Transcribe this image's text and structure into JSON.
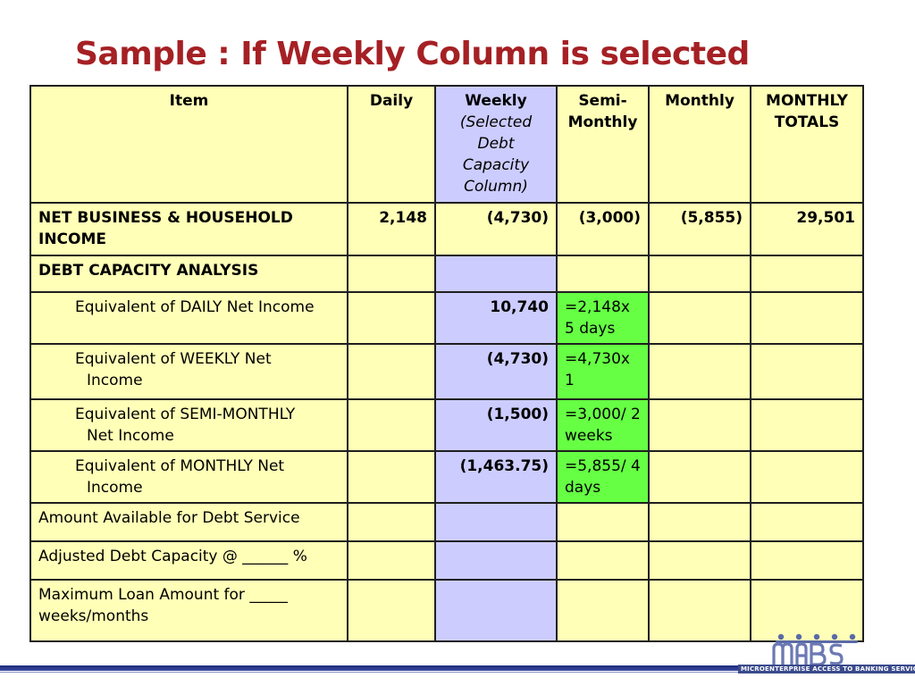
{
  "title": "Sample : If Weekly Column is selected",
  "columns": {
    "item": "Item",
    "daily": "Daily",
    "weekly": "Weekly",
    "weekly_note": "(Selected Debt Capacity Column)",
    "semi_monthly": "Semi-Monthly",
    "monthly": "Monthly",
    "monthly_totals": "MONTHLY TOTALS"
  },
  "rows": {
    "net_income": {
      "label": "NET BUSINESS & HOUSEHOLD INCOME",
      "daily": "2,148",
      "weekly": "(4,730)",
      "semi_monthly": "(3,000)",
      "monthly": "(5,855)",
      "monthly_totals": "29,501"
    },
    "debt_capacity": {
      "label": "DEBT CAPACITY ANALYSIS"
    },
    "eq_daily": {
      "label_1": "Equivalent of DAILY Net Income",
      "weekly": "10,740",
      "note": "=2,148x 5 days"
    },
    "eq_weekly": {
      "label_1": "Equivalent of WEEKLY Net",
      "label_2": "Income",
      "weekly": "(4,730)",
      "note": "=4,730x 1"
    },
    "eq_semi": {
      "label_1": "Equivalent of SEMI-MONTHLY",
      "label_2": "Net Income",
      "weekly": "(1,500)",
      "note": "=3,000/ 2 weeks"
    },
    "eq_monthly": {
      "label_1": "Equivalent of MONTHLY Net",
      "label_2": "Income",
      "weekly": "(1,463.75)",
      "note": "=5,855/ 4 days"
    },
    "amount_available": {
      "label": "Amount Available for Debt Service"
    },
    "adjusted": {
      "label": "Adjusted Debt Capacity @ ______ %"
    },
    "max_loan": {
      "label": "Maximum Loan Amount for _____ weeks/months"
    }
  },
  "logo": {
    "mark": "MABS",
    "tagline": "MICROENTERPRISE ACCESS TO BANKING SERVICES"
  },
  "colors": {
    "title": "#a52024",
    "cell": "#ffffb7",
    "weekly_column": "#ccccff",
    "note_cell": "#66ff44"
  }
}
